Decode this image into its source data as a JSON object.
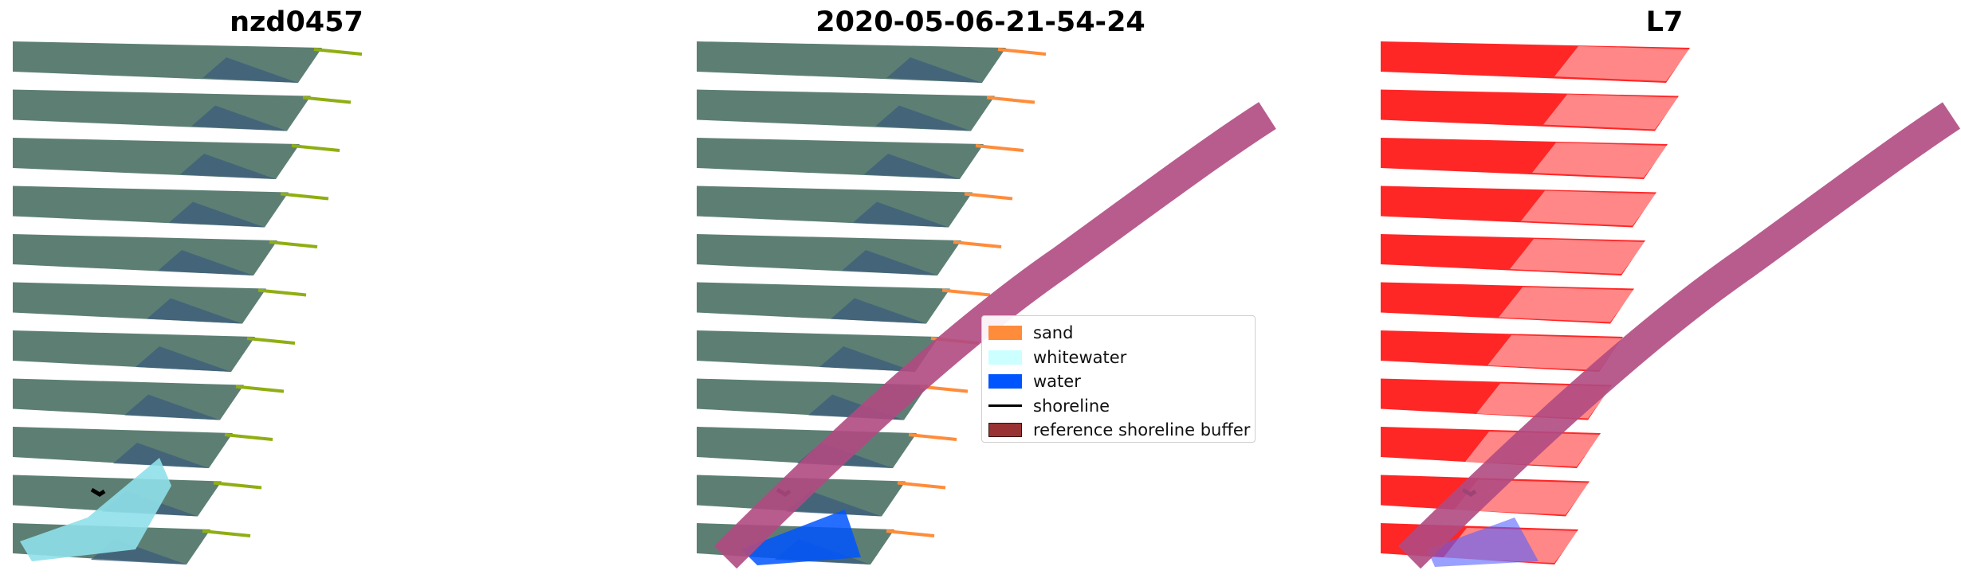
{
  "panels": [
    {
      "title": "nzd0457"
    },
    {
      "title": "2020-05-06-21-54-24"
    },
    {
      "title": "L7"
    }
  ],
  "legend": {
    "items": [
      {
        "label": "sand",
        "color": "#ff8c3a",
        "kind": "patch"
      },
      {
        "label": "whitewater",
        "color": "#ccffff",
        "kind": "patch"
      },
      {
        "label": "water",
        "color": "#0055ff",
        "kind": "patch"
      },
      {
        "label": "shoreline",
        "color": "#000000",
        "kind": "line"
      },
      {
        "label": "reference shoreline buffer",
        "color": "#993333",
        "kind": "patch-outlined"
      }
    ]
  },
  "colors": {
    "imagery": "#5d7f73",
    "imagery_dark": "#3f5f7a",
    "surf": "#8fe0ea",
    "buffer": "#b04a82",
    "mask_red": "#ff1a1a",
    "transect": "#8fae12"
  }
}
